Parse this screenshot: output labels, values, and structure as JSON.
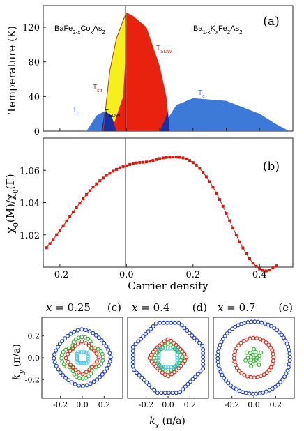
{
  "chart_data": [
    {
      "id": "a",
      "type": "area",
      "panel_label": "(a)",
      "ylabel": "Temperature (K)",
      "xlim": [
        -0.25,
        0.5
      ],
      "ylim": [
        0,
        145
      ],
      "x_ticks": [
        -0.2,
        -0.1,
        0.0,
        0.1,
        0.2,
        0.3,
        0.4,
        0.5
      ],
      "y_ticks": [
        0,
        40,
        80,
        120
      ],
      "y_tick_labels": [
        "0",
        "40",
        "80",
        "120"
      ],
      "left_compound": "BaFe2-xCoxAs2",
      "right_compound": "Ba1-xKxFe2As2",
      "region_labels": {
        "tstr": "Tstr",
        "tsdw_left": "TSDW",
        "tsdw_right": "TSDW",
        "tc_left": "Tc",
        "tc_right": "Tc"
      },
      "colors": {
        "tstr_region": "#f5ef1c",
        "sdw_region": "#e8220f",
        "sc_region": "#3d79d6",
        "sc_overlap": "#1a2fa0"
      },
      "series": [
        {
          "name": "TSDW",
          "x": [
            -0.065,
            -0.05,
            -0.03,
            -0.01,
            0.0
          ],
          "y": [
            0,
            60,
            100,
            125,
            137
          ]
        },
        {
          "name": "Tstr",
          "x": [
            -0.07,
            -0.05,
            -0.03,
            -0.01,
            0.0
          ],
          "y": [
            0,
            70,
            107,
            128,
            137
          ]
        },
        {
          "name": "TSDW",
          "x": [
            0.0,
            0.02,
            0.06,
            0.1,
            0.12,
            0.13
          ],
          "y": [
            137,
            133,
            120,
            75,
            40,
            0
          ]
        },
        {
          "name": "Tc",
          "x": [
            -0.12,
            -0.09,
            -0.065,
            -0.045,
            -0.03
          ],
          "y": [
            0,
            18,
            23,
            18,
            0
          ]
        },
        {
          "name": "Tc",
          "x": [
            0.1,
            0.15,
            0.2,
            0.3,
            0.4,
            0.45,
            0.49
          ],
          "y": [
            0,
            30,
            38,
            35,
            20,
            8,
            0
          ]
        }
      ]
    },
    {
      "id": "b",
      "type": "line",
      "panel_label": "(b)",
      "xlabel": "Carrier density",
      "ylabel": "χ0(M)/χ0(Γ)",
      "xlim": [
        -0.25,
        0.5
      ],
      "ylim": [
        1.0,
        1.08
      ],
      "x_ticks": [
        -0.2,
        0.0,
        0.2,
        0.4
      ],
      "x_tick_labels": [
        "-0.2",
        "0.0",
        "0.2",
        "0.4"
      ],
      "y_ticks": [
        1.02,
        1.04,
        1.06
      ],
      "y_tick_labels": [
        "1.02",
        "1.04",
        "1.06"
      ],
      "color": "#d41a0f",
      "x": [
        -0.24,
        -0.23,
        -0.22,
        -0.21,
        -0.2,
        -0.19,
        -0.18,
        -0.17,
        -0.16,
        -0.15,
        -0.14,
        -0.13,
        -0.12,
        -0.11,
        -0.1,
        -0.09,
        -0.08,
        -0.07,
        -0.06,
        -0.05,
        -0.04,
        -0.03,
        -0.02,
        -0.01,
        0.0,
        0.01,
        0.02,
        0.03,
        0.04,
        0.05,
        0.06,
        0.07,
        0.08,
        0.09,
        0.1,
        0.11,
        0.12,
        0.13,
        0.14,
        0.15,
        0.16,
        0.17,
        0.18,
        0.19,
        0.2,
        0.21,
        0.22,
        0.23,
        0.24,
        0.25,
        0.26,
        0.27,
        0.28,
        0.29,
        0.3,
        0.31,
        0.32,
        0.33,
        0.34,
        0.35,
        0.36,
        0.37,
        0.38,
        0.39,
        0.4,
        0.41,
        0.42,
        0.43,
        0.44,
        0.45
      ],
      "y": [
        1.012,
        1.0145,
        1.0172,
        1.02,
        1.0228,
        1.0256,
        1.0285,
        1.0313,
        1.0342,
        1.037,
        1.0397,
        1.0424,
        1.045,
        1.0474,
        1.0496,
        1.0516,
        1.0535,
        1.0552,
        1.0568,
        1.0582,
        1.0595,
        1.0606,
        1.0616,
        1.0623,
        1.0628,
        1.0636,
        1.0642,
        1.0646,
        1.0649,
        1.065,
        1.0652,
        1.0656,
        1.0661,
        1.0667,
        1.0673,
        1.0677,
        1.068,
        1.0682,
        1.0683,
        1.0683,
        1.0681,
        1.0677,
        1.0671,
        1.0661,
        1.0648,
        1.0632,
        1.0612,
        1.0588,
        1.0561,
        1.053,
        1.0496,
        1.0459,
        1.0419,
        1.0377,
        1.0333,
        1.0288,
        1.0243,
        1.0199,
        1.0157,
        1.0119,
        1.0083,
        1.0052,
        1.0026,
        1.0005,
        0.9989,
        0.998,
        0.9976,
        0.9982,
        0.9995,
        1.0008
      ]
    },
    {
      "id": "c",
      "type": "scatter",
      "title_var": "x = ",
      "title_value": "0.25",
      "panel_label": "(c)",
      "xlabel": "kx (π/a)",
      "ylabel": "ky (π/a)",
      "xlim": [
        -0.37,
        0.37
      ],
      "ylim": [
        -0.37,
        0.37
      ],
      "x_ticks": [
        -0.2,
        0.0,
        0.2
      ],
      "x_tick_labels": [
        "-0.2",
        "0.0",
        "0.2"
      ],
      "y_ticks": [
        -0.2,
        0.0,
        0.2
      ],
      "y_tick_labels": [
        "-0.2",
        "0.0",
        "0.2"
      ],
      "series": [
        {
          "shape": "diamond",
          "radius": 0.26,
          "power": 1.6,
          "color": "#1f3fd1",
          "points": 44
        },
        {
          "shape": "star",
          "radius": 0.19,
          "power": 1.0,
          "color": "#39b33a",
          "points": 40
        },
        {
          "shape": "diamond",
          "radius": 0.15,
          "power": 1.3,
          "color": "#e22b1a",
          "points": 24
        },
        {
          "shape": "square",
          "radius": 0.05,
          "power": 1.0,
          "color": "#52c6e8",
          "points": 20
        }
      ]
    },
    {
      "id": "d",
      "type": "scatter",
      "title_var": "x = ",
      "title_value": "0.4",
      "panel_label": "(d)",
      "xlabel": "kx (π/a)",
      "xlim": [
        -0.37,
        0.37
      ],
      "ylim": [
        -0.37,
        0.37
      ],
      "x_ticks": [
        -0.2,
        0.0,
        0.2
      ],
      "x_tick_labels": [
        "-0.2",
        "0.0",
        "0.2"
      ],
      "series": [
        {
          "shape": "octagon",
          "radius": 0.32,
          "power": 1.0,
          "color": "#1f3fd1",
          "points": 60
        },
        {
          "shape": "diamond",
          "radius": 0.17,
          "power": 1.2,
          "color": "#e22b1a",
          "points": 32
        },
        {
          "shape": "diamond",
          "radius": 0.13,
          "power": 1.2,
          "color": "#39b33a",
          "points": 28
        },
        {
          "shape": "square",
          "radius": 0.085,
          "power": 1.0,
          "color": "#52c6e8",
          "points": 24
        }
      ]
    },
    {
      "id": "e",
      "type": "scatter",
      "title_var": "x = ",
      "title_value": "0.7",
      "panel_label": "(e)",
      "xlabel": "",
      "xlim": [
        -0.37,
        0.37
      ],
      "ylim": [
        -0.37,
        0.37
      ],
      "x_ticks": [
        -0.2,
        0.0,
        0.2
      ],
      "x_tick_labels": [
        "-0.2",
        "0.0",
        "0.2"
      ],
      "series": [
        {
          "shape": "circle",
          "radius": 0.33,
          "power": 1.0,
          "color": "#1f3fd1",
          "points": 66
        },
        {
          "shape": "circle",
          "radius": 0.18,
          "power": 1.0,
          "color": "#e22b1a",
          "points": 36
        },
        {
          "shape": "cluster",
          "radius": 0.08,
          "power": 1.0,
          "color": "#39b33a",
          "points": 20
        }
      ]
    }
  ]
}
